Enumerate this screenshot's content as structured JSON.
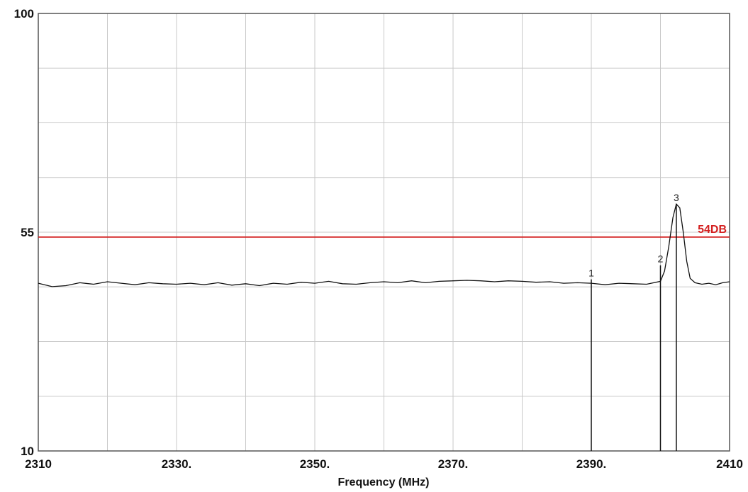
{
  "chart_data": {
    "type": "line",
    "title": "",
    "xlabel": "Frequency (MHz)",
    "ylabel": "",
    "xlim": [
      2310,
      2410
    ],
    "ylim": [
      10,
      100
    ],
    "grid": true,
    "x_ticks": [
      {
        "value": 2310,
        "label": "2310"
      },
      {
        "value": 2330,
        "label": "2330."
      },
      {
        "value": 2350,
        "label": "2350."
      },
      {
        "value": 2370,
        "label": "2370."
      },
      {
        "value": 2390,
        "label": "2390."
      },
      {
        "value": 2410,
        "label": "2410"
      }
    ],
    "y_ticks": [
      {
        "value": 100,
        "label": "100"
      },
      {
        "value": 55,
        "label": "55"
      },
      {
        "value": 10,
        "label": "10"
      }
    ],
    "limit_line": {
      "value": 54,
      "label": "54DB",
      "color": "#d42020"
    },
    "trace_color": "#111111",
    "series": [
      {
        "values": [
          [
            2310,
            44.5
          ],
          [
            2312,
            43.8
          ],
          [
            2314,
            44.0
          ],
          [
            2316,
            44.6
          ],
          [
            2318,
            44.3
          ],
          [
            2320,
            44.8
          ],
          [
            2322,
            44.5
          ],
          [
            2324,
            44.2
          ],
          [
            2326,
            44.6
          ],
          [
            2328,
            44.4
          ],
          [
            2330,
            44.3
          ],
          [
            2332,
            44.5
          ],
          [
            2334,
            44.2
          ],
          [
            2336,
            44.6
          ],
          [
            2338,
            44.1
          ],
          [
            2340,
            44.4
          ],
          [
            2342,
            44.0
          ],
          [
            2344,
            44.5
          ],
          [
            2346,
            44.3
          ],
          [
            2348,
            44.7
          ],
          [
            2350,
            44.5
          ],
          [
            2352,
            44.9
          ],
          [
            2354,
            44.4
          ],
          [
            2356,
            44.3
          ],
          [
            2358,
            44.6
          ],
          [
            2360,
            44.8
          ],
          [
            2362,
            44.6
          ],
          [
            2364,
            45.0
          ],
          [
            2366,
            44.6
          ],
          [
            2368,
            44.9
          ],
          [
            2370,
            45.0
          ],
          [
            2372,
            45.1
          ],
          [
            2374,
            45.0
          ],
          [
            2376,
            44.8
          ],
          [
            2378,
            45.0
          ],
          [
            2380,
            44.9
          ],
          [
            2382,
            44.7
          ],
          [
            2384,
            44.8
          ],
          [
            2386,
            44.5
          ],
          [
            2388,
            44.6
          ],
          [
            2390,
            44.5
          ],
          [
            2392,
            44.2
          ],
          [
            2394,
            44.5
          ],
          [
            2396,
            44.4
          ],
          [
            2398,
            44.3
          ],
          [
            2400,
            44.9
          ],
          [
            2400.6,
            47.0
          ],
          [
            2401.2,
            52.0
          ],
          [
            2401.8,
            58.0
          ],
          [
            2402.3,
            60.8
          ],
          [
            2402.8,
            60.0
          ],
          [
            2403.3,
            55.0
          ],
          [
            2403.8,
            49.0
          ],
          [
            2404.3,
            45.5
          ],
          [
            2405,
            44.6
          ],
          [
            2406,
            44.3
          ],
          [
            2407,
            44.5
          ],
          [
            2408,
            44.2
          ],
          [
            2409,
            44.6
          ],
          [
            2410,
            44.8
          ]
        ]
      }
    ],
    "markers": [
      {
        "label": "1",
        "x": 2390,
        "y": 45.3
      },
      {
        "label": "2",
        "x": 2400,
        "y": 48.2
      },
      {
        "label": "3",
        "x": 2402.3,
        "y": 60.8
      }
    ]
  }
}
